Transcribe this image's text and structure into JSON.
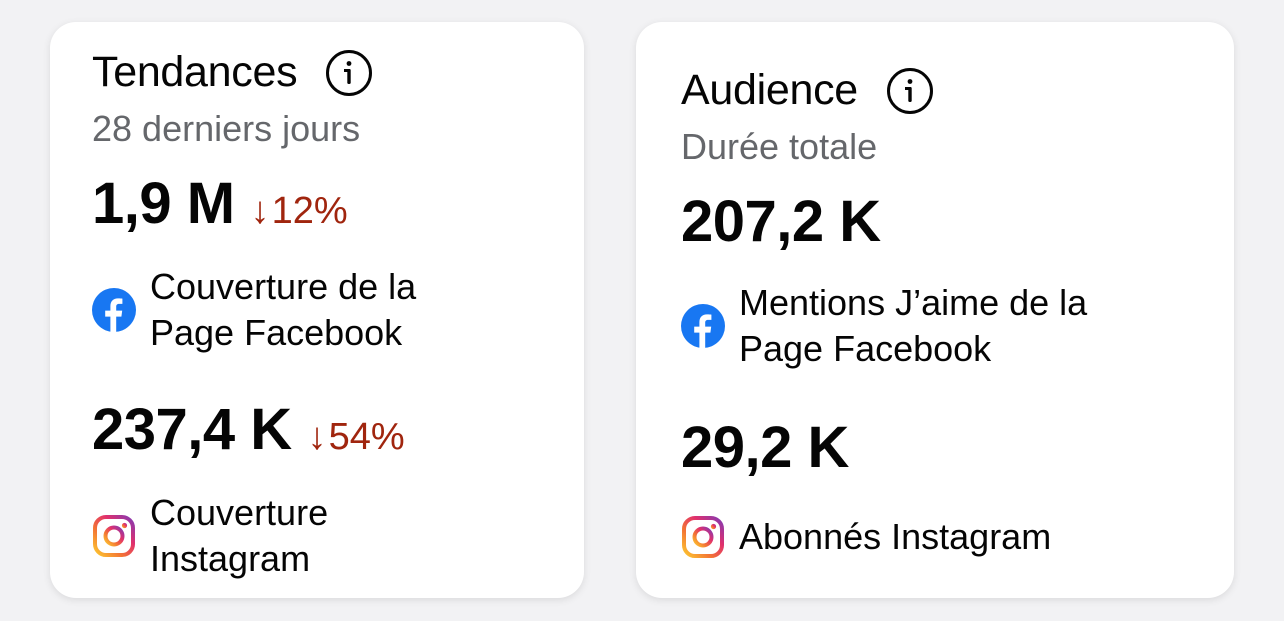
{
  "cards": [
    {
      "title": "Tendances",
      "subtitle": "28 derniers jours",
      "metrics": [
        {
          "value": "1,9 M",
          "delta_arrow": "↓",
          "delta": "12%",
          "platform": "facebook-icon",
          "label_lines": [
            "Couverture de la",
            "Page Facebook"
          ]
        },
        {
          "value": "237,4 K",
          "delta_arrow": "↓",
          "delta": "54%",
          "platform": "instagram-icon",
          "label_lines": [
            "Couverture",
            "Instagram"
          ]
        }
      ]
    },
    {
      "title": "Audience",
      "subtitle": "Durée totale",
      "metrics": [
        {
          "value": "207,2 K",
          "platform": "facebook-icon",
          "label_lines": [
            "Mentions J’aime de la",
            "Page Facebook"
          ]
        },
        {
          "value": "29,2 K",
          "platform": "instagram-icon",
          "label_lines": [
            "Abonnés Instagram"
          ]
        }
      ]
    }
  ],
  "colors": {
    "negative_delta": "#a0250e",
    "subtitle": "#65676b",
    "facebook": "#1877f2"
  }
}
